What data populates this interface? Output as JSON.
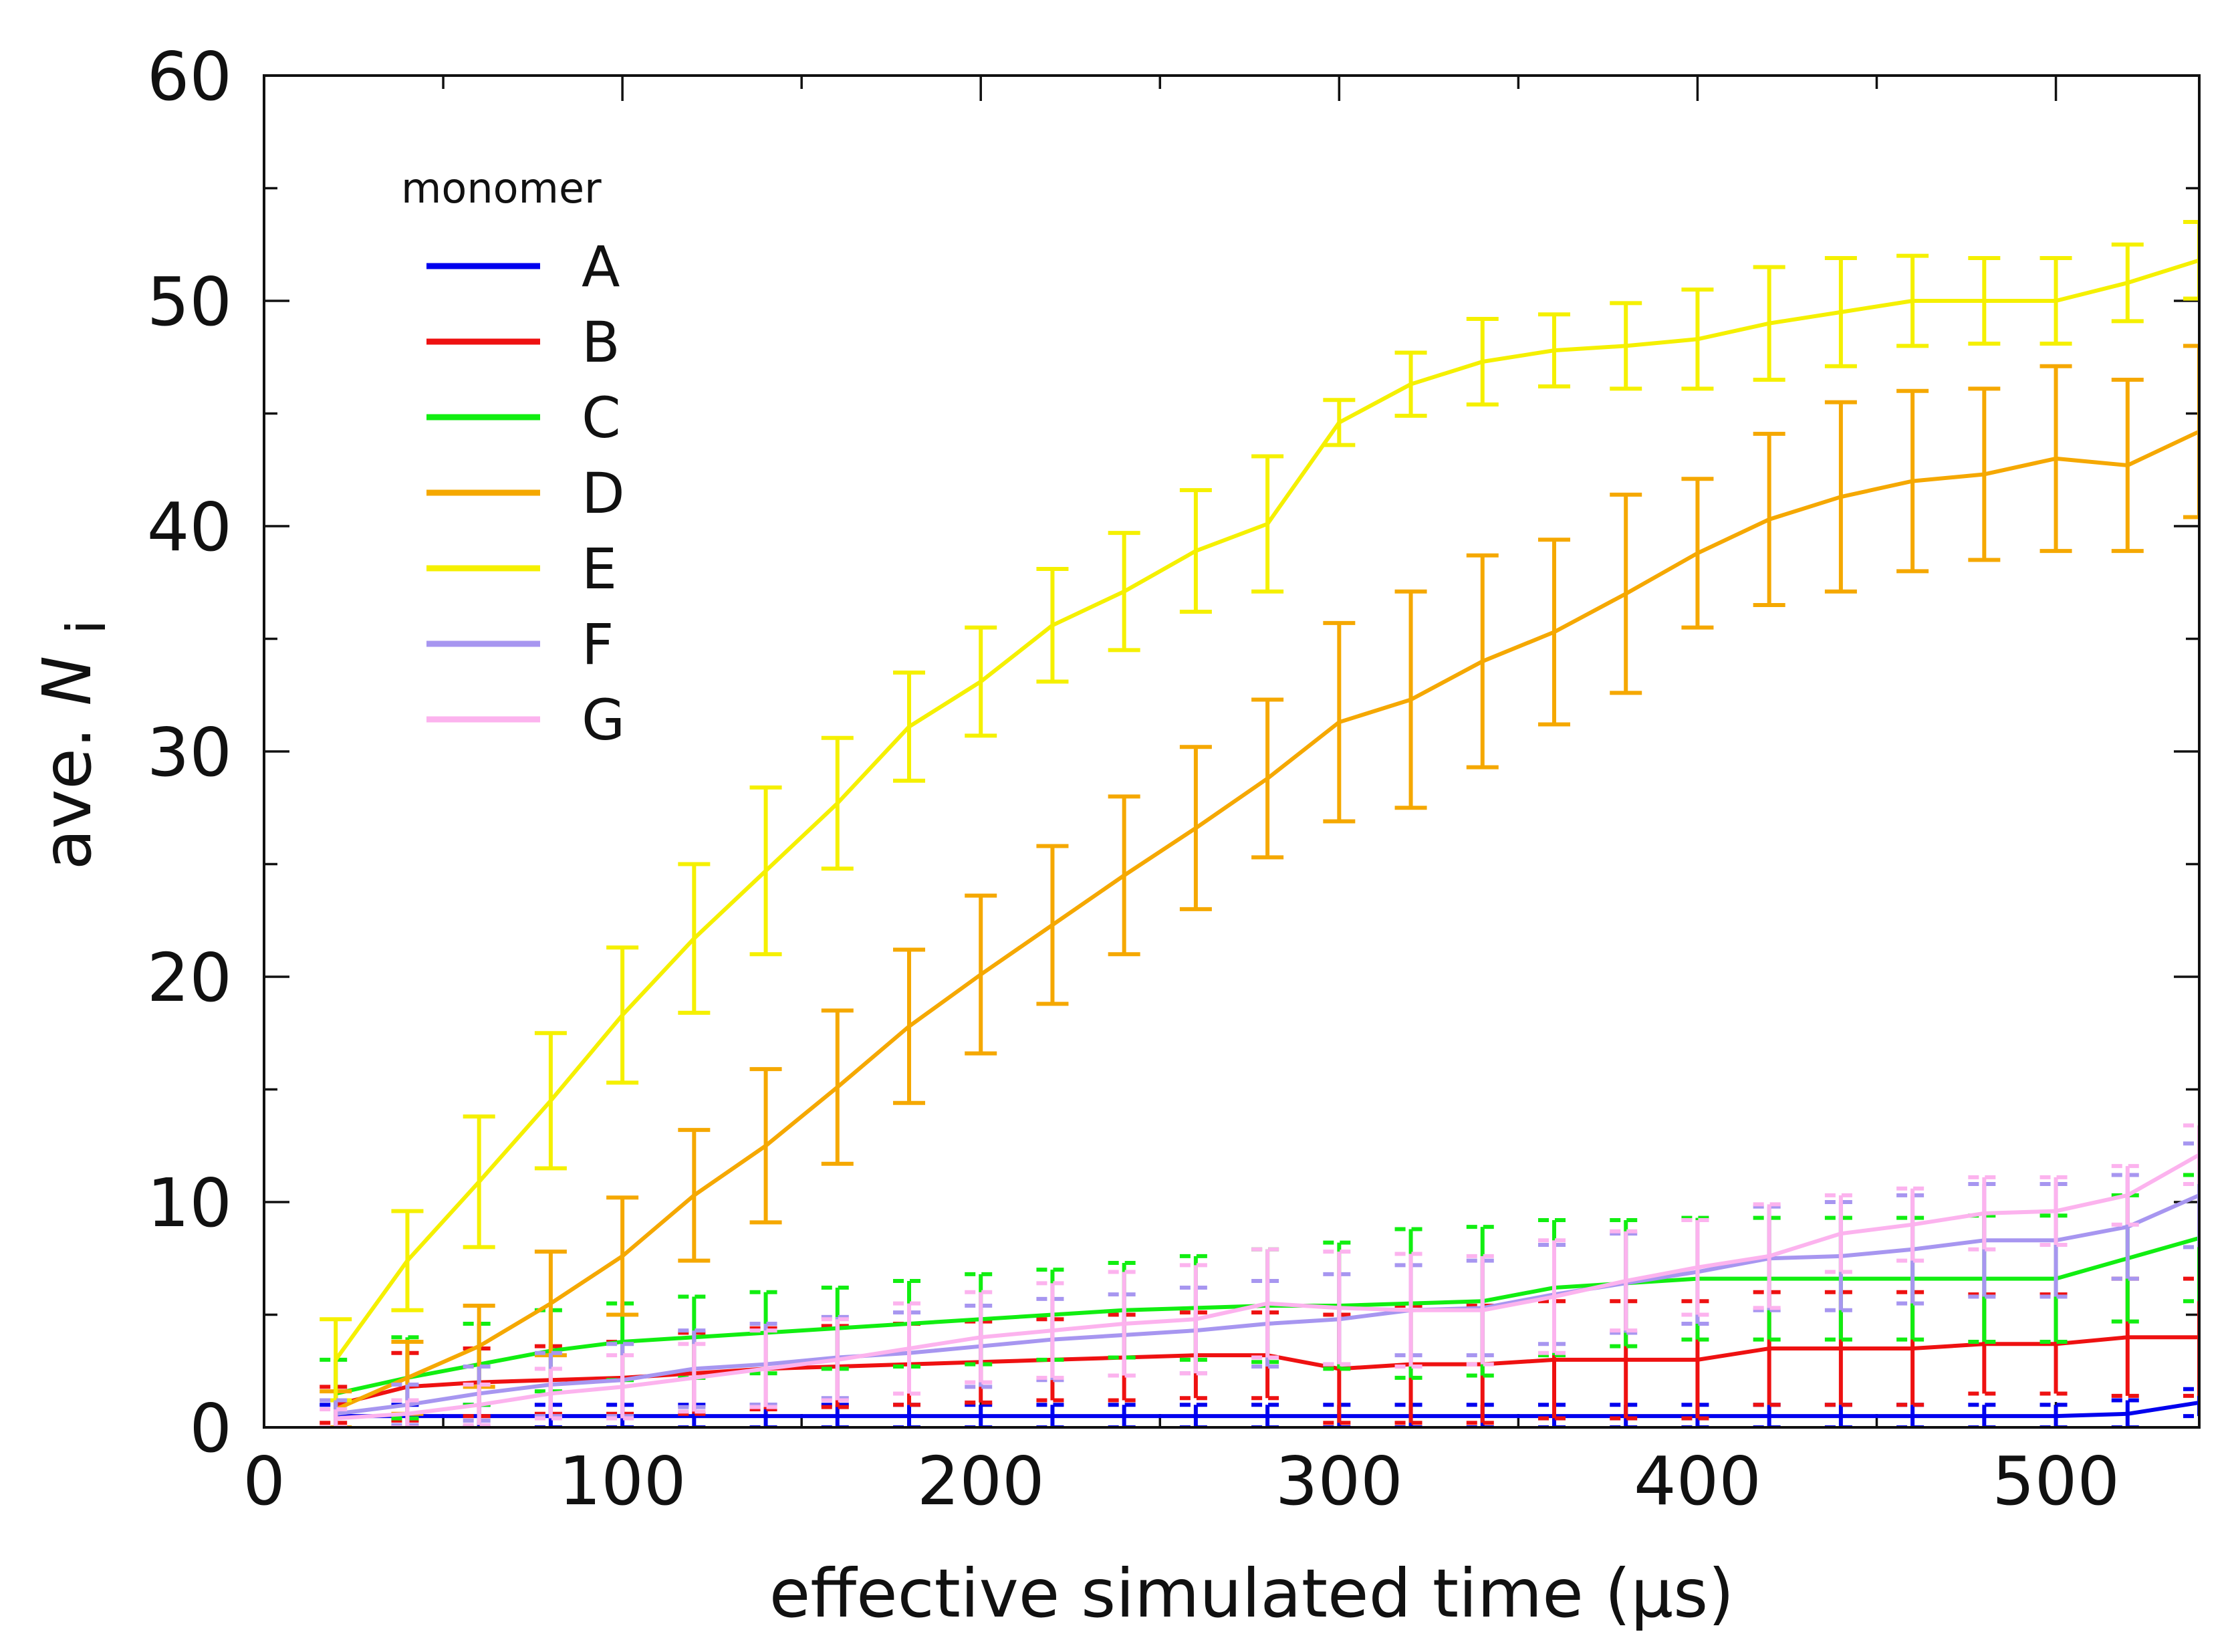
{
  "chart_data": {
    "type": "line",
    "title": "",
    "xlabel": "effective simulated time (μs)",
    "ylabel_prefix": "ave.",
    "ylabel_var": "N",
    "ylabel_sub": "i",
    "xlim": [
      0,
      540
    ],
    "ylim": [
      0,
      60
    ],
    "xticks": [
      0,
      100,
      200,
      300,
      400,
      500
    ],
    "yticks": [
      0,
      10,
      20,
      30,
      40,
      50,
      60
    ],
    "x_minor_step": 50,
    "y_minor_step": 5,
    "grid": false,
    "legend": {
      "title": "monomer",
      "position": "top-left"
    },
    "x": [
      20,
      40,
      60,
      80,
      100,
      120,
      140,
      160,
      180,
      200,
      220,
      240,
      260,
      280,
      300,
      320,
      340,
      360,
      380,
      400,
      420,
      440,
      460,
      480,
      500,
      520,
      540
    ],
    "series": [
      {
        "name": "A",
        "color": "#0000ee",
        "values": [
          0.5,
          0.5,
          0.5,
          0.5,
          0.5,
          0.5,
          0.5,
          0.5,
          0.5,
          0.5,
          0.5,
          0.5,
          0.5,
          0.5,
          0.5,
          0.5,
          0.5,
          0.5,
          0.5,
          0.5,
          0.5,
          0.5,
          0.5,
          0.5,
          0.5,
          0.6,
          1.1
        ],
        "errors": [
          0.5,
          0.5,
          0.5,
          0.5,
          0.5,
          0.5,
          0.5,
          0.5,
          0.5,
          0.5,
          0.5,
          0.5,
          0.5,
          0.5,
          0.5,
          0.5,
          0.5,
          0.5,
          0.5,
          0.5,
          0.5,
          0.5,
          0.5,
          0.5,
          0.5,
          0.6,
          0.6
        ]
      },
      {
        "name": "B",
        "color": "#ee1111",
        "values": [
          1.0,
          1.8,
          2.0,
          2.1,
          2.2,
          2.4,
          2.6,
          2.7,
          2.8,
          2.9,
          3.0,
          3.1,
          3.2,
          3.2,
          2.6,
          2.8,
          2.8,
          3.0,
          3.0,
          3.0,
          3.5,
          3.5,
          3.5,
          3.7,
          3.7,
          4.0,
          4.0
        ],
        "errors": [
          0.8,
          1.5,
          1.5,
          1.5,
          1.6,
          1.8,
          1.8,
          1.8,
          1.8,
          1.8,
          1.8,
          1.9,
          1.9,
          1.9,
          2.4,
          2.6,
          2.6,
          2.6,
          2.6,
          2.6,
          2.5,
          2.5,
          2.5,
          2.2,
          2.2,
          2.6,
          2.6
        ]
      },
      {
        "name": "C",
        "color": "#11ee11",
        "values": [
          1.5,
          2.2,
          2.8,
          3.4,
          3.8,
          4.0,
          4.2,
          4.4,
          4.6,
          4.8,
          5.0,
          5.2,
          5.3,
          5.4,
          5.4,
          5.5,
          5.6,
          6.2,
          6.4,
          6.6,
          6.6,
          6.6,
          6.6,
          6.6,
          6.6,
          7.5,
          8.4
        ],
        "errors": [
          1.5,
          1.8,
          1.8,
          1.8,
          1.7,
          1.8,
          1.8,
          1.8,
          1.9,
          2.0,
          2.0,
          2.1,
          2.3,
          2.5,
          2.8,
          3.3,
          3.3,
          3.0,
          2.8,
          2.7,
          2.7,
          2.7,
          2.7,
          2.8,
          2.8,
          2.8,
          2.8
        ]
      },
      {
        "name": "D",
        "color": "#f5a800",
        "values": [
          0.8,
          2.2,
          3.6,
          5.5,
          7.6,
          10.3,
          12.5,
          15.1,
          17.8,
          20.1,
          22.3,
          24.5,
          26.6,
          28.8,
          31.3,
          32.3,
          34.0,
          35.3,
          37.0,
          38.8,
          40.3,
          41.3,
          42.0,
          42.3,
          43.0,
          42.7,
          44.2
        ],
        "errors": [
          0.8,
          1.6,
          1.8,
          2.3,
          2.6,
          2.9,
          3.4,
          3.4,
          3.4,
          3.5,
          3.5,
          3.5,
          3.6,
          3.5,
          4.4,
          4.8,
          4.7,
          4.1,
          4.4,
          3.3,
          3.8,
          4.2,
          4.0,
          3.8,
          4.1,
          3.8,
          3.8
        ]
      },
      {
        "name": "E",
        "color": "#f5f000",
        "values": [
          3.0,
          7.4,
          10.9,
          14.5,
          18.3,
          21.7,
          24.7,
          27.7,
          31.1,
          33.1,
          35.6,
          37.1,
          38.9,
          40.1,
          44.6,
          46.3,
          47.3,
          47.8,
          48.0,
          48.3,
          49.0,
          49.5,
          50.0,
          50.0,
          50.0,
          50.8,
          51.8
        ],
        "errors": [
          1.8,
          2.2,
          2.9,
          3.0,
          3.0,
          3.3,
          3.7,
          2.9,
          2.4,
          2.4,
          2.5,
          2.6,
          2.7,
          3.0,
          1.0,
          1.4,
          1.9,
          1.6,
          1.9,
          2.2,
          2.5,
          2.4,
          2.0,
          1.9,
          1.9,
          1.7,
          1.7
        ]
      },
      {
        "name": "F",
        "color": "#a796f0",
        "values": [
          0.6,
          1.0,
          1.5,
          1.9,
          2.1,
          2.6,
          2.8,
          3.1,
          3.3,
          3.6,
          3.9,
          4.1,
          4.3,
          4.6,
          4.8,
          5.2,
          5.3,
          5.9,
          6.4,
          6.9,
          7.5,
          7.6,
          7.9,
          8.3,
          8.3,
          8.9,
          10.3
        ],
        "errors": [
          0.6,
          0.9,
          1.2,
          1.4,
          1.6,
          1.7,
          1.8,
          1.8,
          1.8,
          1.8,
          1.8,
          1.8,
          1.9,
          1.9,
          2.0,
          2.0,
          2.1,
          2.2,
          2.2,
          2.3,
          2.3,
          2.4,
          2.4,
          2.5,
          2.5,
          2.3,
          2.3
        ]
      },
      {
        "name": "G",
        "color": "#fcb3ee",
        "values": [
          0.4,
          0.6,
          1.0,
          1.5,
          1.8,
          2.2,
          2.6,
          3.0,
          3.5,
          4.0,
          4.3,
          4.6,
          4.8,
          5.5,
          5.3,
          5.2,
          5.2,
          5.8,
          6.5,
          7.1,
          7.6,
          8.6,
          9.0,
          9.5,
          9.6,
          10.3,
          12.1
        ],
        "errors": [
          0.4,
          0.6,
          0.9,
          1.1,
          1.4,
          1.5,
          1.7,
          1.8,
          2.0,
          2.0,
          2.1,
          2.3,
          2.4,
          2.4,
          2.5,
          2.5,
          2.4,
          2.5,
          2.2,
          2.1,
          2.3,
          1.7,
          1.6,
          1.6,
          1.5,
          1.3,
          1.3
        ]
      }
    ]
  }
}
